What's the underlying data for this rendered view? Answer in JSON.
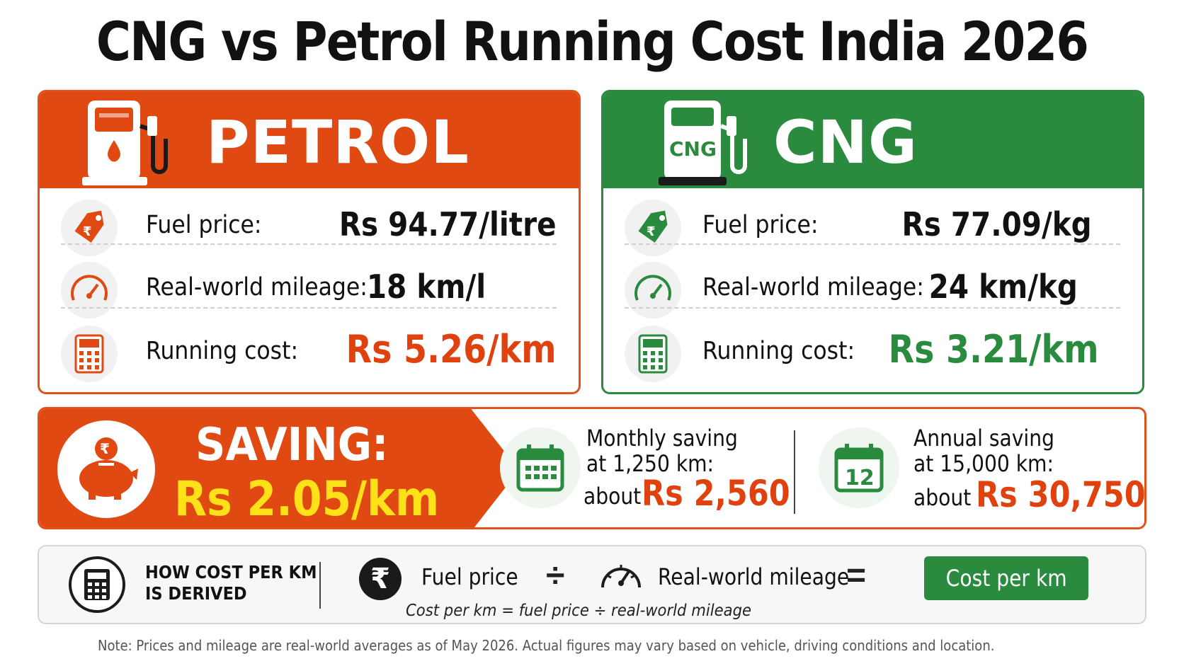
{
  "title": "CNG vs Petrol Running Cost India 2026",
  "colors": {
    "petrol": "#e04a12",
    "cng": "#2a8a3e",
    "highlight": "#ffe11a"
  },
  "petrol": {
    "label": "PETROL",
    "icon": "fuel-pump-icon",
    "fuel_price_label": "Fuel price:",
    "fuel_price": "Rs 94.77/litre",
    "mileage_label": "Real-world mileage:",
    "mileage": "18 km/l",
    "running_cost_label": "Running cost:",
    "running_cost": "Rs 5.26/km"
  },
  "cng": {
    "label": "CNG",
    "pump_text": "CNG",
    "icon": "cng-pump-icon",
    "fuel_price_label": "Fuel price:",
    "fuel_price": "Rs 77.09/kg",
    "mileage_label": "Real-world mileage:",
    "mileage": "24 km/kg",
    "running_cost_label": "Running cost:",
    "running_cost": "Rs 3.21/km"
  },
  "saving": {
    "label": "SAVING:",
    "value": "Rs 2.05/km",
    "monthly": {
      "line1": "Monthly saving",
      "line2": "at 1,250 km:",
      "about": "about",
      "amount": "Rs 2,560"
    },
    "annual": {
      "line1": "Annual saving",
      "line2": "at 15,000 km:",
      "about": "about",
      "amount": "Rs 30,750",
      "calendar_number": "12"
    }
  },
  "formula": {
    "heading_line1": "HOW COST PER KM",
    "heading_line2": "IS DERIVED",
    "rupee_symbol": "₹",
    "fuel_price": "Fuel price",
    "divide": "÷",
    "mileage": "Real-world mileage",
    "equals": "=",
    "result": "Cost per km",
    "equation": "Cost per km = fuel price ÷ real-world mileage"
  },
  "note": "Note: Prices and mileage are real-world averages as of May 2026. Actual figures may vary based on vehicle, driving conditions and location."
}
